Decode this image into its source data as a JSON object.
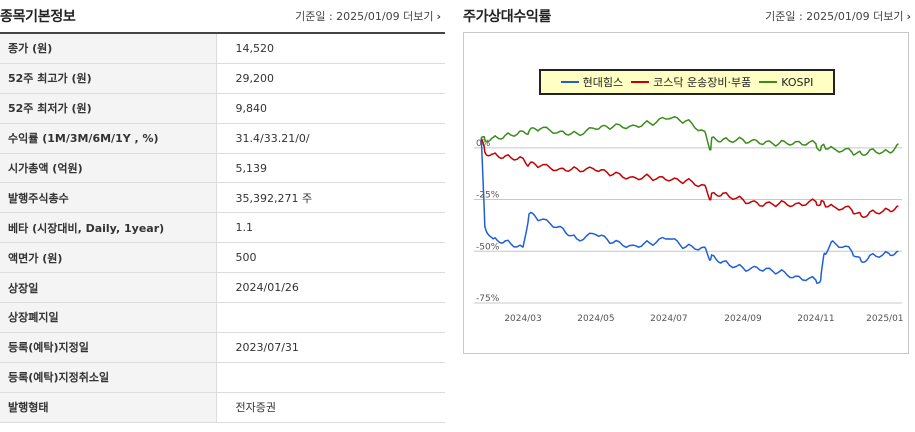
{
  "basic_info": {
    "title": "종목기본정보",
    "date_label": "기준일 : 2025/01/09",
    "more_label": "더보기",
    "rows": [
      {
        "label": "종가 (원)",
        "value": "14,520"
      },
      {
        "label": "52주 최고가 (원)",
        "value": "29,200"
      },
      {
        "label": "52주 최저가 (원)",
        "value": "9,840"
      },
      {
        "label": "수익률 (1M/3M/6M/1Y , %)",
        "value": "31.4/33.21/0/"
      },
      {
        "label": "시가총액 (억원)",
        "value": "5,139"
      },
      {
        "label": "발행주식총수",
        "value": "35,392,271 주"
      },
      {
        "label": "베타 (시장대비, Daily, 1year)",
        "value": "1.1"
      },
      {
        "label": "액면가 (원)",
        "value": "500"
      },
      {
        "label": "상장일",
        "value": "2024/01/26"
      },
      {
        "label": "상장폐지일",
        "value": ""
      },
      {
        "label": "등록(예탁)지정일",
        "value": "2023/07/31"
      },
      {
        "label": "등록(예탁)지정취소일",
        "value": ""
      },
      {
        "label": "발행형태",
        "value": "전자증권"
      }
    ]
  },
  "relative_return": {
    "title": "주가상대수익률",
    "date_label": "기준일 : 2025/01/09",
    "more_label": "더보기",
    "chevron_icon": "chevron-right-icon"
  },
  "chart_data": {
    "type": "line",
    "y_ticks": [
      "0%",
      "-25%",
      "-50%",
      "-75%"
    ],
    "x_ticks": [
      "2024/03",
      "2024/05",
      "2024/07",
      "2024/09",
      "2024/11",
      "2025/01"
    ],
    "y_unit": "%",
    "ylim": [
      -75,
      12
    ],
    "grid": true,
    "legend_position": "top-center",
    "legend_background": "#ffffc4",
    "x_dates": [
      "2024/01/26",
      "2024/01/29",
      "2024/02/05",
      "2024/02/15",
      "2024/03/01",
      "2024/03/06",
      "2024/03/15",
      "2024/04/01",
      "2024/04/15",
      "2024/05/01",
      "2024/05/15",
      "2024/06/01",
      "2024/06/15",
      "2024/07/01",
      "2024/07/15",
      "2024/07/31",
      "2024/08/05",
      "2024/08/06",
      "2024/08/15",
      "2024/09/01",
      "2024/09/15",
      "2024/10/01",
      "2024/10/15",
      "2024/11/01",
      "2024/11/05",
      "2024/11/08",
      "2024/11/15",
      "2024/12/01",
      "2024/12/09",
      "2024/12/16",
      "2025/01/01",
      "2025/01/09"
    ],
    "series": [
      {
        "name": "현대힘스",
        "color": "#1f5fd6",
        "values": [
          5,
          -38,
          -44,
          -45,
          -48,
          -32,
          -35,
          -38,
          -44,
          -42,
          -46,
          -47,
          -46,
          -44,
          -48,
          -48,
          -54,
          -52,
          -55,
          -58,
          -59,
          -60,
          -62,
          -64,
          -64,
          -51,
          -45,
          -50,
          -55,
          -52,
          -51,
          -50
        ]
      },
      {
        "name": "코스닥 운송장비·부품",
        "color": "#c40000",
        "values": [
          4,
          -2,
          -3,
          -4,
          -5,
          -8,
          -9,
          -10,
          -10,
          -11,
          -13,
          -14,
          -14,
          -16,
          -16,
          -18,
          -25,
          -22,
          -22,
          -25,
          -28,
          -27,
          -27,
          -26,
          -27,
          -27,
          -28,
          -30,
          -33,
          -31,
          -30,
          -28
        ]
      },
      {
        "name": "KOSPI",
        "color": "#3a8c1a",
        "values": [
          4,
          4,
          5,
          6,
          8,
          8,
          9,
          8,
          7,
          9,
          10,
          11,
          12,
          14,
          13,
          8,
          -1,
          5,
          4,
          4,
          2,
          2,
          3,
          2,
          -1,
          1,
          0,
          -2,
          -3,
          -1,
          -2,
          2
        ]
      }
    ]
  }
}
